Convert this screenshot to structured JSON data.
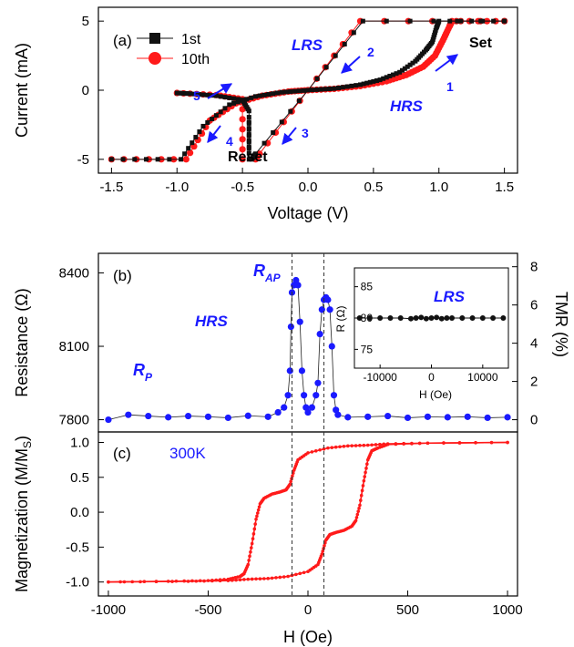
{
  "colors": {
    "red": "#ff1a1a",
    "black": "#111111",
    "blue": "#1a1aff",
    "axis": "#000000"
  },
  "panels": {
    "a": {
      "label": "(a)",
      "xlabel": "Voltage (V)",
      "ylabel": "Current (mA)",
      "legend": [
        "1st",
        "10th"
      ],
      "annotations": {
        "lrs": "LRS",
        "hrs": "HRS",
        "set": "Set",
        "reset": "Reset",
        "arrows": [
          "1",
          "2",
          "3",
          "4",
          "5"
        ]
      }
    },
    "b": {
      "label": "(b)",
      "ylabel_left": "Resistance (Ω)",
      "ylabel_right": "TMR (%)",
      "annotations": {
        "rap": "R",
        "rap_sub": "AP",
        "rp": "R",
        "rp_sub": "P",
        "hrs": "HRS"
      },
      "inset": {
        "title": "LRS",
        "xlabel": "H (Oe)",
        "ylabel": "R (Ω)"
      }
    },
    "c": {
      "label": "(c)",
      "temperature": "300K",
      "xlabel": "H (Oe)",
      "ylabel": "Magnetization (M/M",
      "ylabel_sub": "S",
      "ylabel_end": ")"
    }
  },
  "chart_data": [
    {
      "type": "line",
      "title": "",
      "xlabel": "Voltage (V)",
      "ylabel": "Current (mA)",
      "xlim": [
        -1.6,
        1.6
      ],
      "ylim": [
        -6,
        6
      ],
      "xticks": [
        -1.5,
        -1.0,
        -0.5,
        0.0,
        0.5,
        1.0,
        1.5
      ],
      "xtick_labels": [
        "-1.5",
        "-1.0",
        "-0.5",
        "0.0",
        "0.5",
        "1.0",
        "1.5"
      ],
      "yticks": [
        -5,
        0,
        5
      ],
      "ytick_labels": [
        "-5",
        "0",
        "5"
      ],
      "legend_position": "top-left",
      "series": [
        {
          "name": "1st",
          "color": "#111111",
          "marker": "square",
          "segments": [
            [
              [
                -1.5,
                -5
              ],
              [
                -0.97,
                -5
              ],
              [
                -0.8,
                -2.6
              ],
              [
                -0.6,
                -1.05
              ],
              [
                -0.4,
                -0.45
              ],
              [
                -0.2,
                -0.15
              ],
              [
                0,
                0
              ],
              [
                0.2,
                0.12
              ],
              [
                0.4,
                0.4
              ],
              [
                0.55,
                0.75
              ],
              [
                0.7,
                1.3
              ],
              [
                0.82,
                2.1
              ],
              [
                0.9,
                2.9
              ],
              [
                0.95,
                3.5
              ],
              [
                0.98,
                4.5
              ],
              [
                1.0,
                5
              ],
              [
                1.5,
                5
              ]
            ],
            [
              [
                1.5,
                5
              ],
              [
                0.42,
                5
              ],
              [
                0,
                0
              ],
              [
                -0.4,
                -4.6
              ],
              [
                -0.43,
                -5
              ]
            ],
            [
              [
                -0.45,
                -4.2
              ],
              [
                -0.45,
                -1.5
              ],
              [
                -0.5,
                -0.7
              ],
              [
                -0.7,
                -0.4
              ],
              [
                -0.9,
                -0.25
              ],
              [
                -1.0,
                -0.2
              ]
            ],
            [
              [
                -0.45,
                -5
              ],
              [
                -0.45,
                -2.3
              ]
            ]
          ]
        },
        {
          "name": "10th",
          "color": "#ff1a1a",
          "marker": "circle",
          "segments": [
            [
              [
                -1.5,
                -5
              ],
              [
                -0.93,
                -5
              ],
              [
                -0.75,
                -2.2
              ],
              [
                -0.55,
                -0.95
              ],
              [
                -0.35,
                -0.4
              ],
              [
                -0.15,
                -0.1
              ],
              [
                0,
                0
              ],
              [
                0.2,
                0.1
              ],
              [
                0.4,
                0.3
              ],
              [
                0.6,
                0.65
              ],
              [
                0.75,
                1.1
              ],
              [
                0.88,
                1.7
              ],
              [
                0.97,
                2.5
              ],
              [
                1.03,
                3.6
              ],
              [
                1.08,
                4.6
              ],
              [
                1.1,
                5
              ],
              [
                1.5,
                5
              ]
            ],
            [
              [
                1.5,
                5
              ],
              [
                0.4,
                5
              ],
              [
                0,
                0
              ],
              [
                -0.37,
                -4.6
              ],
              [
                -0.4,
                -5
              ]
            ],
            [
              [
                -0.5,
                -5
              ],
              [
                -0.5,
                -0.65
              ],
              [
                -0.7,
                -0.35
              ],
              [
                -1.0,
                -0.2
              ]
            ]
          ]
        }
      ]
    },
    {
      "type": "line",
      "title": "",
      "ylabel": "Resistance (Ω)",
      "y2label": "TMR (%)",
      "xlim": [
        -1050,
        1050
      ],
      "ylim": [
        7750,
        8480
      ],
      "yticks": [
        7800,
        8100,
        8400
      ],
      "ytick_labels": [
        "7800",
        "8100",
        "8400"
      ],
      "y2lim": [
        -0.64,
        8.7
      ],
      "y2ticks": [
        0,
        2,
        4,
        6,
        8
      ],
      "y2tick_labels": [
        "0",
        "2",
        "4",
        "6",
        "8"
      ],
      "series": [
        {
          "name": "",
          "color": "#1a1aff",
          "marker": "circle",
          "segments": [
            [
              [
                -1000,
                7800
              ],
              [
                -900,
                7820
              ],
              [
                -800,
                7815
              ],
              [
                -700,
                7810
              ],
              [
                -600,
                7815
              ],
              [
                -500,
                7812
              ],
              [
                -400,
                7808
              ],
              [
                -300,
                7816
              ],
              [
                -200,
                7812
              ],
              [
                -150,
                7830
              ],
              [
                -120,
                7850
              ],
              [
                -100,
                7900
              ],
              [
                -90,
                8000
              ],
              [
                -85,
                8180
              ],
              [
                -80,
                8320
              ],
              [
                -70,
                8350
              ],
              [
                -60,
                8370
              ],
              [
                -50,
                8350
              ],
              [
                -40,
                8200
              ],
              [
                -30,
                8000
              ],
              [
                -20,
                7900
              ],
              [
                -10,
                7850
              ],
              [
                0,
                7830
              ],
              [
                20,
                7850
              ],
              [
                40,
                7900
              ],
              [
                50,
                7950
              ],
              [
                60,
                8150
              ],
              [
                70,
                8250
              ],
              [
                80,
                8290
              ],
              [
                90,
                8300
              ],
              [
                100,
                8290
              ],
              [
                110,
                8250
              ],
              [
                120,
                8100
              ],
              [
                130,
                7900
              ],
              [
                140,
                7840
              ],
              [
                150,
                7820
              ],
              [
                200,
                7810
              ],
              [
                300,
                7812
              ],
              [
                400,
                7815
              ],
              [
                500,
                7808
              ],
              [
                600,
                7812
              ],
              [
                700,
                7810
              ],
              [
                800,
                7812
              ],
              [
                900,
                7808
              ],
              [
                1000,
                7810
              ]
            ]
          ]
        }
      ],
      "inset": {
        "xlabel": "H (Oe)",
        "ylabel": "R (Ω)",
        "xlim": [
          -15000,
          15000
        ],
        "ylim": [
          72,
          88
        ],
        "xticks": [
          -10000,
          0,
          10000
        ],
        "xtick_labels": [
          "-10000",
          "0",
          "10000"
        ],
        "yticks": [
          75,
          80,
          85
        ],
        "ytick_labels": [
          "75",
          "80",
          "85"
        ],
        "title": "LRS",
        "series": [
          {
            "name": "",
            "color": "#111111",
            "points": [
              [
                -14000,
                80
              ],
              [
                -12000,
                80
              ],
              [
                -10000,
                80
              ],
              [
                -8000,
                80
              ],
              [
                -6000,
                80
              ],
              [
                -4000,
                79.9
              ],
              [
                -3000,
                80
              ],
              [
                -2000,
                80.1
              ],
              [
                -1000,
                79.9
              ],
              [
                0,
                80
              ],
              [
                1000,
                80.1
              ],
              [
                2000,
                79.9
              ],
              [
                3000,
                80
              ],
              [
                4000,
                80
              ],
              [
                6000,
                80
              ],
              [
                8000,
                80
              ],
              [
                10000,
                80
              ],
              [
                12000,
                80
              ],
              [
                14000,
                80
              ]
            ]
          }
        ]
      }
    },
    {
      "type": "line",
      "title": "",
      "xlabel": "H (Oe)",
      "ylabel": "Magnetization (M/MS)",
      "xlim": [
        -1050,
        1050
      ],
      "ylim": [
        -1.2,
        1.15
      ],
      "xticks": [
        -1000,
        -500,
        0,
        500,
        1000
      ],
      "xtick_labels": [
        "-1000",
        "-500",
        "0",
        "500",
        "1000"
      ],
      "yticks": [
        -1.0,
        -0.5,
        0.0,
        0.5,
        1.0
      ],
      "ytick_labels": [
        "-1.0",
        "-0.5",
        "0.0",
        "0.5",
        "1.0"
      ],
      "vlines": [
        -80,
        80
      ],
      "series": [
        {
          "name": "",
          "color": "#ff1a1a",
          "marker": "small",
          "segments": [
            [
              [
                -1000,
                -1.0
              ],
              [
                -700,
                -0.99
              ],
              [
                -500,
                -0.98
              ],
              [
                -400,
                -0.96
              ],
              [
                -340,
                -0.92
              ],
              [
                -320,
                -0.88
              ],
              [
                -300,
                -0.75
              ],
              [
                -280,
                -0.45
              ],
              [
                -260,
                -0.1
              ],
              [
                -240,
                0.12
              ],
              [
                -220,
                0.2
              ],
              [
                -180,
                0.26
              ],
              [
                -140,
                0.29
              ],
              [
                -110,
                0.32
              ],
              [
                -90,
                0.4
              ],
              [
                -70,
                0.6
              ],
              [
                -50,
                0.75
              ],
              [
                0,
                0.85
              ],
              [
                100,
                0.92
              ],
              [
                200,
                0.95
              ],
              [
                300,
                0.96
              ],
              [
                400,
                0.98
              ],
              [
                600,
                0.99
              ],
              [
                1000,
                1.0
              ]
            ],
            [
              [
                1000,
                1.0
              ],
              [
                600,
                0.99
              ],
              [
                400,
                0.97
              ],
              [
                350,
                0.92
              ],
              [
                320,
                0.88
              ],
              [
                300,
                0.75
              ],
              [
                280,
                0.45
              ],
              [
                260,
                0.1
              ],
              [
                240,
                -0.12
              ],
              [
                220,
                -0.2
              ],
              [
                180,
                -0.26
              ],
              [
                140,
                -0.29
              ],
              [
                110,
                -0.32
              ],
              [
                90,
                -0.4
              ],
              [
                70,
                -0.6
              ],
              [
                50,
                -0.75
              ],
              [
                0,
                -0.85
              ],
              [
                -100,
                -0.92
              ],
              [
                -200,
                -0.95
              ],
              [
                -300,
                -0.96
              ],
              [
                -400,
                -0.98
              ],
              [
                -600,
                -0.99
              ],
              [
                -1000,
                -1.0
              ]
            ]
          ]
        }
      ]
    }
  ]
}
